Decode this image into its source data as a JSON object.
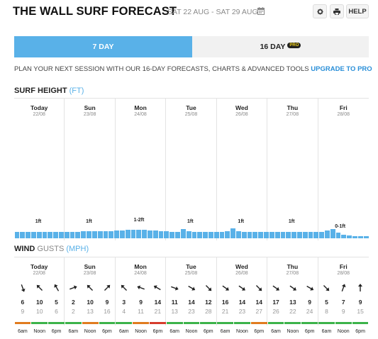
{
  "header": {
    "title": "THE WALL SURF FORECAST",
    "dates": "SAT 22 AUG - SAT 29 AUG",
    "help_label": "HELP"
  },
  "tabs": [
    {
      "label": "7 DAY",
      "active": true
    },
    {
      "label": "16 DAY",
      "badge": "PRO",
      "active": false
    }
  ],
  "promo": {
    "text": "PLAN YOUR NEXT SESSION WITH OUR 16-DAY FORECASTS, CHARTS & ADVANCED TOOLS ",
    "link": "UPGRADE TO PRO"
  },
  "surf": {
    "title": "SURF HEIGHT",
    "unit": "(FT)"
  },
  "wind": {
    "title": "WIND",
    "unit_title": "GUSTS",
    "unit": "(MPH)"
  },
  "colors": {
    "accent": "#59b1e8",
    "link": "#2a8fd8",
    "rating_good": "#3cb34a",
    "rating_fair": "#e07b1f",
    "rating_poor": "#d63c2c"
  },
  "days": [
    {
      "name": "Today",
      "date": "22/08",
      "wave": "1ft"
    },
    {
      "name": "Sun",
      "date": "23/08",
      "wave": "1ft"
    },
    {
      "name": "Mon",
      "date": "24/08",
      "wave": "1-2ft"
    },
    {
      "name": "Tue",
      "date": "25/08",
      "wave": "1ft"
    },
    {
      "name": "Wed",
      "date": "26/08",
      "wave": "1ft"
    },
    {
      "name": "Thu",
      "date": "27/08",
      "wave": "1ft"
    },
    {
      "name": "Fri",
      "date": "28/08",
      "wave": "0-1ft"
    }
  ],
  "chart_data": {
    "type": "bar",
    "title": "SURF HEIGHT",
    "ylabel": "(FT)",
    "ylim": [
      0,
      12
    ],
    "values": [
      1,
      1,
      1,
      1,
      1.1,
      1.1,
      1.1,
      1.1,
      1.1,
      1.1,
      1.1,
      1.1,
      1.2,
      1.2,
      1.2,
      1.2,
      1.2,
      1.2,
      1.3,
      1.3,
      1.4,
      1.4,
      1.4,
      1.4,
      1.3,
      1.3,
      1.2,
      1.2,
      1.1,
      1.1,
      1.5,
      1.2,
      1,
      1.1,
      1.1,
      1,
      1,
      1.1,
      1.2,
      1.6,
      1.2,
      1,
      1.1,
      1.1,
      1.1,
      1.1,
      1.1,
      1,
      1,
      1,
      1,
      1,
      1,
      1,
      1,
      1.1,
      1.3,
      1.5,
      0.9,
      0.6,
      0.5,
      0.4,
      0.4,
      0.4
    ]
  },
  "wind_slots": [
    {
      "time": "6am",
      "speed": "6",
      "gust": "9",
      "dir": 160,
      "rating": "fair"
    },
    {
      "time": "Noon",
      "speed": "10",
      "gust": "10",
      "dir": 315,
      "rating": "good"
    },
    {
      "time": "6pm",
      "speed": "5",
      "gust": "6",
      "dir": 330,
      "rating": "good"
    },
    {
      "time": "6am",
      "speed": "2",
      "gust": "2",
      "dir": 70,
      "rating": "good"
    },
    {
      "time": "Noon",
      "speed": "10",
      "gust": "13",
      "dir": 315,
      "rating": "fair"
    },
    {
      "time": "6pm",
      "speed": "9",
      "gust": "16",
      "dir": 45,
      "rating": "good"
    },
    {
      "time": "6am",
      "speed": "3",
      "gust": "4",
      "dir": 315,
      "rating": "good"
    },
    {
      "time": "Noon",
      "speed": "9",
      "gust": "11",
      "dir": 290,
      "rating": "fair"
    },
    {
      "time": "6pm",
      "speed": "14",
      "gust": "21",
      "dir": 300,
      "rating": "poor"
    },
    {
      "time": "6am",
      "speed": "11",
      "gust": "13",
      "dir": 110,
      "rating": "good"
    },
    {
      "time": "Noon",
      "speed": "14",
      "gust": "23",
      "dir": 120,
      "rating": "good"
    },
    {
      "time": "6pm",
      "speed": "12",
      "gust": "28",
      "dir": 135,
      "rating": "good"
    },
    {
      "time": "6am",
      "speed": "16",
      "gust": "21",
      "dir": 125,
      "rating": "good"
    },
    {
      "time": "Noon",
      "speed": "14",
      "gust": "23",
      "dir": 125,
      "rating": "good"
    },
    {
      "time": "6pm",
      "speed": "14",
      "gust": "27",
      "dir": 135,
      "rating": "fair"
    },
    {
      "time": "6am",
      "speed": "17",
      "gust": "26",
      "dir": 125,
      "rating": "good"
    },
    {
      "time": "Noon",
      "speed": "13",
      "gust": "22",
      "dir": 125,
      "rating": "good"
    },
    {
      "time": "6pm",
      "speed": "9",
      "gust": "24",
      "dir": 120,
      "rating": "good"
    },
    {
      "time": "6am",
      "speed": "5",
      "gust": "8",
      "dir": 135,
      "rating": "good"
    },
    {
      "time": "Noon",
      "speed": "7",
      "gust": "9",
      "dir": 20,
      "rating": "good"
    },
    {
      "time": "6pm",
      "speed": "9",
      "gust": "15",
      "dir": 0,
      "rating": "good"
    }
  ]
}
